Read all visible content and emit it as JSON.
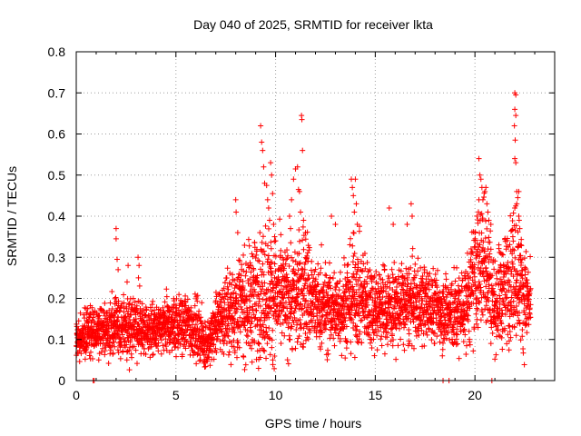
{
  "chart_data": {
    "type": "scatter",
    "title": "Day 040 of 2025, SRMTID for receiver lkta",
    "xlabel": "GPS time / hours",
    "ylabel": "SRMTID / TECUs",
    "xlim": [
      0,
      24
    ],
    "ylim": [
      0,
      0.8
    ],
    "xticks": [
      0,
      5,
      10,
      15,
      20
    ],
    "yticks": [
      0,
      0.1,
      0.2,
      0.3,
      0.4,
      0.5,
      0.6,
      0.7,
      0.8
    ],
    "xtick_labels": [
      "0",
      "5",
      "10",
      "15",
      "20"
    ],
    "ytick_labels": [
      "0",
      "0.1",
      "0.2",
      "0.3",
      "0.4",
      "0.5",
      "0.6",
      "0.7",
      "0.8"
    ],
    "grid": true,
    "marker": "plus",
    "series_color": "#ff0000",
    "profile": {
      "hour": [
        0,
        1,
        2,
        3,
        4,
        5,
        6,
        6.6,
        7,
        8,
        9,
        9.5,
        10,
        11,
        11.5,
        12,
        13,
        14,
        15,
        16,
        17,
        18,
        19,
        19.5,
        20,
        20.5,
        21,
        21.5,
        22,
        22.5,
        22.8
      ],
      "median": [
        0.1,
        0.12,
        0.13,
        0.13,
        0.12,
        0.14,
        0.13,
        0.08,
        0.14,
        0.18,
        0.2,
        0.22,
        0.2,
        0.2,
        0.23,
        0.18,
        0.17,
        0.21,
        0.18,
        0.18,
        0.19,
        0.18,
        0.16,
        0.18,
        0.25,
        0.3,
        0.18,
        0.22,
        0.28,
        0.2,
        0.18
      ],
      "spread": [
        0.04,
        0.04,
        0.05,
        0.05,
        0.04,
        0.05,
        0.05,
        0.04,
        0.05,
        0.08,
        0.1,
        0.12,
        0.09,
        0.09,
        0.11,
        0.07,
        0.07,
        0.09,
        0.07,
        0.07,
        0.07,
        0.06,
        0.07,
        0.07,
        0.1,
        0.12,
        0.07,
        0.09,
        0.12,
        0.08,
        0.06
      ]
    },
    "sample_interval_hours": 0.012,
    "points_per_sample": 2,
    "peaks": [
      {
        "x": 2.0,
        "y": 0.37
      },
      {
        "x": 2.0,
        "y": 0.345
      },
      {
        "x": 2.05,
        "y": 0.295
      },
      {
        "x": 2.1,
        "y": 0.27
      },
      {
        "x": 2.6,
        "y": 0.28
      },
      {
        "x": 2.55,
        "y": 0.24
      },
      {
        "x": 3.1,
        "y": 0.3
      },
      {
        "x": 3.15,
        "y": 0.28
      },
      {
        "x": 3.12,
        "y": 0.25
      },
      {
        "x": 3.18,
        "y": 0.23
      },
      {
        "x": 8.0,
        "y": 0.44
      },
      {
        "x": 8.02,
        "y": 0.41
      },
      {
        "x": 8.1,
        "y": 0.36
      },
      {
        "x": 9.25,
        "y": 0.62
      },
      {
        "x": 9.3,
        "y": 0.58
      },
      {
        "x": 9.35,
        "y": 0.56
      },
      {
        "x": 9.4,
        "y": 0.52
      },
      {
        "x": 9.45,
        "y": 0.48
      },
      {
        "x": 9.55,
        "y": 0.475
      },
      {
        "x": 9.6,
        "y": 0.44
      },
      {
        "x": 9.65,
        "y": 0.42
      },
      {
        "x": 9.75,
        "y": 0.53
      },
      {
        "x": 9.8,
        "y": 0.5
      },
      {
        "x": 9.85,
        "y": 0.455
      },
      {
        "x": 9.9,
        "y": 0.38
      },
      {
        "x": 9.7,
        "y": 0.39
      },
      {
        "x": 9.95,
        "y": 0.35
      },
      {
        "x": 10.0,
        "y": 0.34
      },
      {
        "x": 10.8,
        "y": 0.44
      },
      {
        "x": 10.9,
        "y": 0.49
      },
      {
        "x": 11.0,
        "y": 0.515
      },
      {
        "x": 11.1,
        "y": 0.52
      },
      {
        "x": 11.15,
        "y": 0.465
      },
      {
        "x": 11.2,
        "y": 0.46
      },
      {
        "x": 11.25,
        "y": 0.41
      },
      {
        "x": 11.3,
        "y": 0.645
      },
      {
        "x": 11.32,
        "y": 0.635
      },
      {
        "x": 11.35,
        "y": 0.56
      },
      {
        "x": 11.4,
        "y": 0.39
      },
      {
        "x": 11.5,
        "y": 0.36
      },
      {
        "x": 10.7,
        "y": 0.4
      },
      {
        "x": 10.75,
        "y": 0.37
      },
      {
        "x": 12.3,
        "y": 0.33
      },
      {
        "x": 12.8,
        "y": 0.4
      },
      {
        "x": 13.0,
        "y": 0.38
      },
      {
        "x": 13.8,
        "y": 0.49
      },
      {
        "x": 13.85,
        "y": 0.47
      },
      {
        "x": 13.9,
        "y": 0.45
      },
      {
        "x": 14.0,
        "y": 0.49
      },
      {
        "x": 14.05,
        "y": 0.43
      },
      {
        "x": 13.95,
        "y": 0.41
      },
      {
        "x": 14.1,
        "y": 0.38
      },
      {
        "x": 13.9,
        "y": 0.36
      },
      {
        "x": 15.7,
        "y": 0.42
      },
      {
        "x": 15.9,
        "y": 0.38
      },
      {
        "x": 16.8,
        "y": 0.43
      },
      {
        "x": 16.85,
        "y": 0.4
      },
      {
        "x": 16.6,
        "y": 0.38
      },
      {
        "x": 20.2,
        "y": 0.54
      },
      {
        "x": 20.25,
        "y": 0.5
      },
      {
        "x": 20.3,
        "y": 0.49
      },
      {
        "x": 20.35,
        "y": 0.47
      },
      {
        "x": 20.4,
        "y": 0.44
      },
      {
        "x": 20.5,
        "y": 0.46
      },
      {
        "x": 20.55,
        "y": 0.47
      },
      {
        "x": 20.6,
        "y": 0.43
      },
      {
        "x": 20.65,
        "y": 0.41
      },
      {
        "x": 20.2,
        "y": 0.44
      },
      {
        "x": 20.1,
        "y": 0.4
      },
      {
        "x": 20.7,
        "y": 0.39
      },
      {
        "x": 20.0,
        "y": 0.36
      },
      {
        "x": 20.8,
        "y": 0.38
      },
      {
        "x": 21.2,
        "y": 0.33
      },
      {
        "x": 21.3,
        "y": 0.31
      },
      {
        "x": 22.0,
        "y": 0.7
      },
      {
        "x": 22.05,
        "y": 0.695
      },
      {
        "x": 22.0,
        "y": 0.66
      },
      {
        "x": 22.05,
        "y": 0.645
      },
      {
        "x": 21.98,
        "y": 0.62
      },
      {
        "x": 22.02,
        "y": 0.585
      },
      {
        "x": 22.0,
        "y": 0.54
      },
      {
        "x": 22.05,
        "y": 0.53
      },
      {
        "x": 22.1,
        "y": 0.46
      },
      {
        "x": 22.15,
        "y": 0.445
      },
      {
        "x": 22.1,
        "y": 0.43
      },
      {
        "x": 22.2,
        "y": 0.4
      },
      {
        "x": 22.0,
        "y": 0.42
      },
      {
        "x": 22.25,
        "y": 0.37
      },
      {
        "x": 21.9,
        "y": 0.35
      },
      {
        "x": 22.3,
        "y": 0.33
      },
      {
        "x": 22.2,
        "y": 0.46
      }
    ],
    "zero_points": [
      0.85,
      0.9,
      18.4,
      18.7,
      20.85
    ]
  }
}
